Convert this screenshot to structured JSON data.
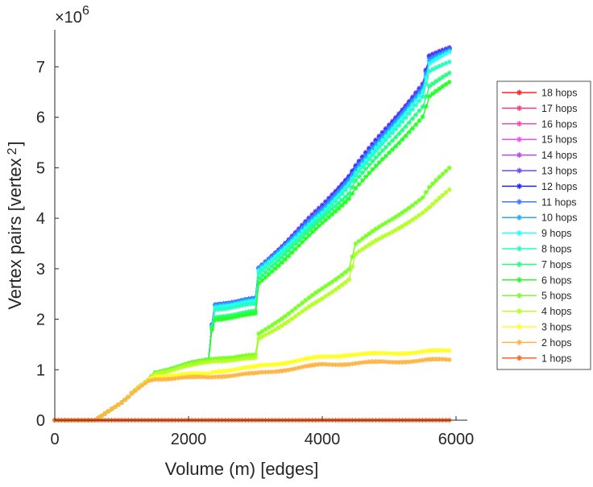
{
  "chart_data": {
    "type": "line",
    "title": "",
    "xlabel": "Volume (m) [edges]",
    "ylabel": "Vertex pairs [vertex",
    "ylabel_superscript": "2",
    "y_multiplier": "×10",
    "y_multiplier_exp": "6",
    "xlim": [
      0,
      6150
    ],
    "ylim": [
      0,
      7.75
    ],
    "xticks": [
      "0",
      "2000",
      "4000",
      "6000"
    ],
    "xtick_values": [
      0,
      2000,
      4000,
      6000
    ],
    "yticks": [
      "0",
      "1",
      "2",
      "3",
      "4",
      "5",
      "6",
      "7"
    ],
    "ytick_values": [
      0,
      1,
      2,
      3,
      4,
      5,
      6,
      7
    ],
    "grid": false,
    "legend_placement": "outside-right",
    "x": [
      0,
      600,
      1000,
      1400,
      1500,
      2300,
      2350,
      2400,
      3000,
      3050,
      4000,
      4400,
      4500,
      5500,
      5600,
      5900
    ],
    "series": [
      {
        "name": "18 hops",
        "color": "#ff2424",
        "values": [
          0,
          0,
          0.35,
          0.8,
          0.95,
          1.2,
          1.9,
          2.3,
          2.4,
          3.0,
          4.25,
          4.85,
          5.05,
          6.65,
          7.2,
          7.38
        ]
      },
      {
        "name": "17 hops",
        "color": "#ff3a78",
        "values": [
          0,
          0,
          0.35,
          0.8,
          0.95,
          1.2,
          1.9,
          2.3,
          2.4,
          3.0,
          4.25,
          4.85,
          5.05,
          6.65,
          7.2,
          7.38
        ]
      },
      {
        "name": "16 hops",
        "color": "#ff46b4",
        "values": [
          0,
          0,
          0.35,
          0.8,
          0.95,
          1.2,
          1.9,
          2.3,
          2.4,
          3.0,
          4.25,
          4.85,
          5.05,
          6.65,
          7.2,
          7.38
        ]
      },
      {
        "name": "15 hops",
        "color": "#ff46ff",
        "values": [
          0,
          0,
          0.35,
          0.8,
          0.95,
          1.2,
          1.9,
          2.3,
          2.4,
          3.0,
          4.25,
          4.85,
          5.05,
          6.65,
          7.2,
          7.38
        ]
      },
      {
        "name": "14 hops",
        "color": "#b446ff",
        "values": [
          0,
          0,
          0.35,
          0.8,
          0.95,
          1.2,
          1.9,
          2.3,
          2.4,
          3.0,
          4.25,
          4.85,
          5.05,
          6.65,
          7.2,
          7.38
        ]
      },
      {
        "name": "13 hops",
        "color": "#7046ff",
        "values": [
          0,
          0,
          0.35,
          0.8,
          0.95,
          1.2,
          1.9,
          2.3,
          2.4,
          3.0,
          4.25,
          4.85,
          5.05,
          6.65,
          7.2,
          7.38
        ]
      },
      {
        "name": "12 hops",
        "color": "#2424ff",
        "values": [
          0,
          0,
          0.35,
          0.8,
          0.95,
          1.2,
          1.9,
          2.3,
          2.4,
          3.0,
          4.22,
          4.83,
          5.03,
          6.62,
          7.18,
          7.36
        ]
      },
      {
        "name": "11 hops",
        "color": "#3a78ff",
        "values": [
          0,
          0,
          0.35,
          0.8,
          0.95,
          1.2,
          1.9,
          2.3,
          2.4,
          3.0,
          4.2,
          4.8,
          5.0,
          6.6,
          7.15,
          7.35
        ]
      },
      {
        "name": "10 hops",
        "color": "#24aaff",
        "values": [
          0,
          0,
          0.35,
          0.8,
          0.95,
          1.2,
          1.88,
          2.28,
          2.38,
          2.98,
          4.15,
          4.75,
          4.95,
          6.55,
          7.1,
          7.32
        ]
      },
      {
        "name": "9 hops",
        "color": "#24ffff",
        "values": [
          0,
          0,
          0.35,
          0.8,
          0.95,
          1.2,
          1.87,
          2.25,
          2.35,
          2.95,
          4.1,
          4.7,
          4.9,
          6.5,
          7.05,
          7.3
        ]
      },
      {
        "name": "8 hops",
        "color": "#24ffc0",
        "values": [
          0,
          0,
          0.35,
          0.8,
          0.95,
          1.2,
          1.86,
          2.2,
          2.3,
          2.9,
          4.05,
          4.65,
          4.85,
          6.4,
          6.9,
          7.1
        ]
      },
      {
        "name": "7 hops",
        "color": "#24ff80",
        "values": [
          0,
          0,
          0.35,
          0.8,
          0.95,
          1.2,
          1.85,
          2.05,
          2.15,
          2.8,
          4.0,
          4.5,
          4.75,
          6.2,
          6.6,
          6.88
        ]
      },
      {
        "name": "6 hops",
        "color": "#24ff24",
        "values": [
          0,
          0,
          0.35,
          0.8,
          0.95,
          1.2,
          1.8,
          2.0,
          2.1,
          2.7,
          3.9,
          4.4,
          4.6,
          6.0,
          6.4,
          6.7
        ]
      },
      {
        "name": "5 hops",
        "color": "#78ff24",
        "values": [
          0,
          0,
          0.35,
          0.8,
          0.95,
          1.2,
          1.22,
          1.23,
          1.28,
          1.7,
          2.6,
          3.0,
          3.5,
          4.4,
          4.6,
          5.0
        ]
      },
      {
        "name": "4 hops",
        "color": "#b4ff24",
        "values": [
          0,
          0,
          0.35,
          0.8,
          0.93,
          1.15,
          1.17,
          1.18,
          1.22,
          1.6,
          2.4,
          2.8,
          3.3,
          4.1,
          4.2,
          4.57
        ]
      },
      {
        "name": "3 hops",
        "color": "#ffff24",
        "values": [
          0,
          0,
          0.35,
          0.8,
          0.88,
          0.92,
          0.95,
          0.97,
          1.05,
          1.07,
          1.25,
          1.3,
          1.3,
          1.35,
          1.36,
          1.38
        ]
      },
      {
        "name": "2 hops",
        "color": "#ffb446",
        "values": [
          0,
          0,
          0.35,
          0.78,
          0.82,
          0.85,
          0.86,
          0.87,
          0.92,
          0.93,
          1.1,
          1.12,
          1.13,
          1.18,
          1.19,
          1.2
        ]
      },
      {
        "name": "1 hops",
        "color": "#ff6424",
        "values": [
          0,
          0,
          0,
          0,
          0,
          0,
          0,
          0,
          0,
          0,
          0,
          0,
          0,
          0,
          0,
          0
        ]
      }
    ]
  }
}
